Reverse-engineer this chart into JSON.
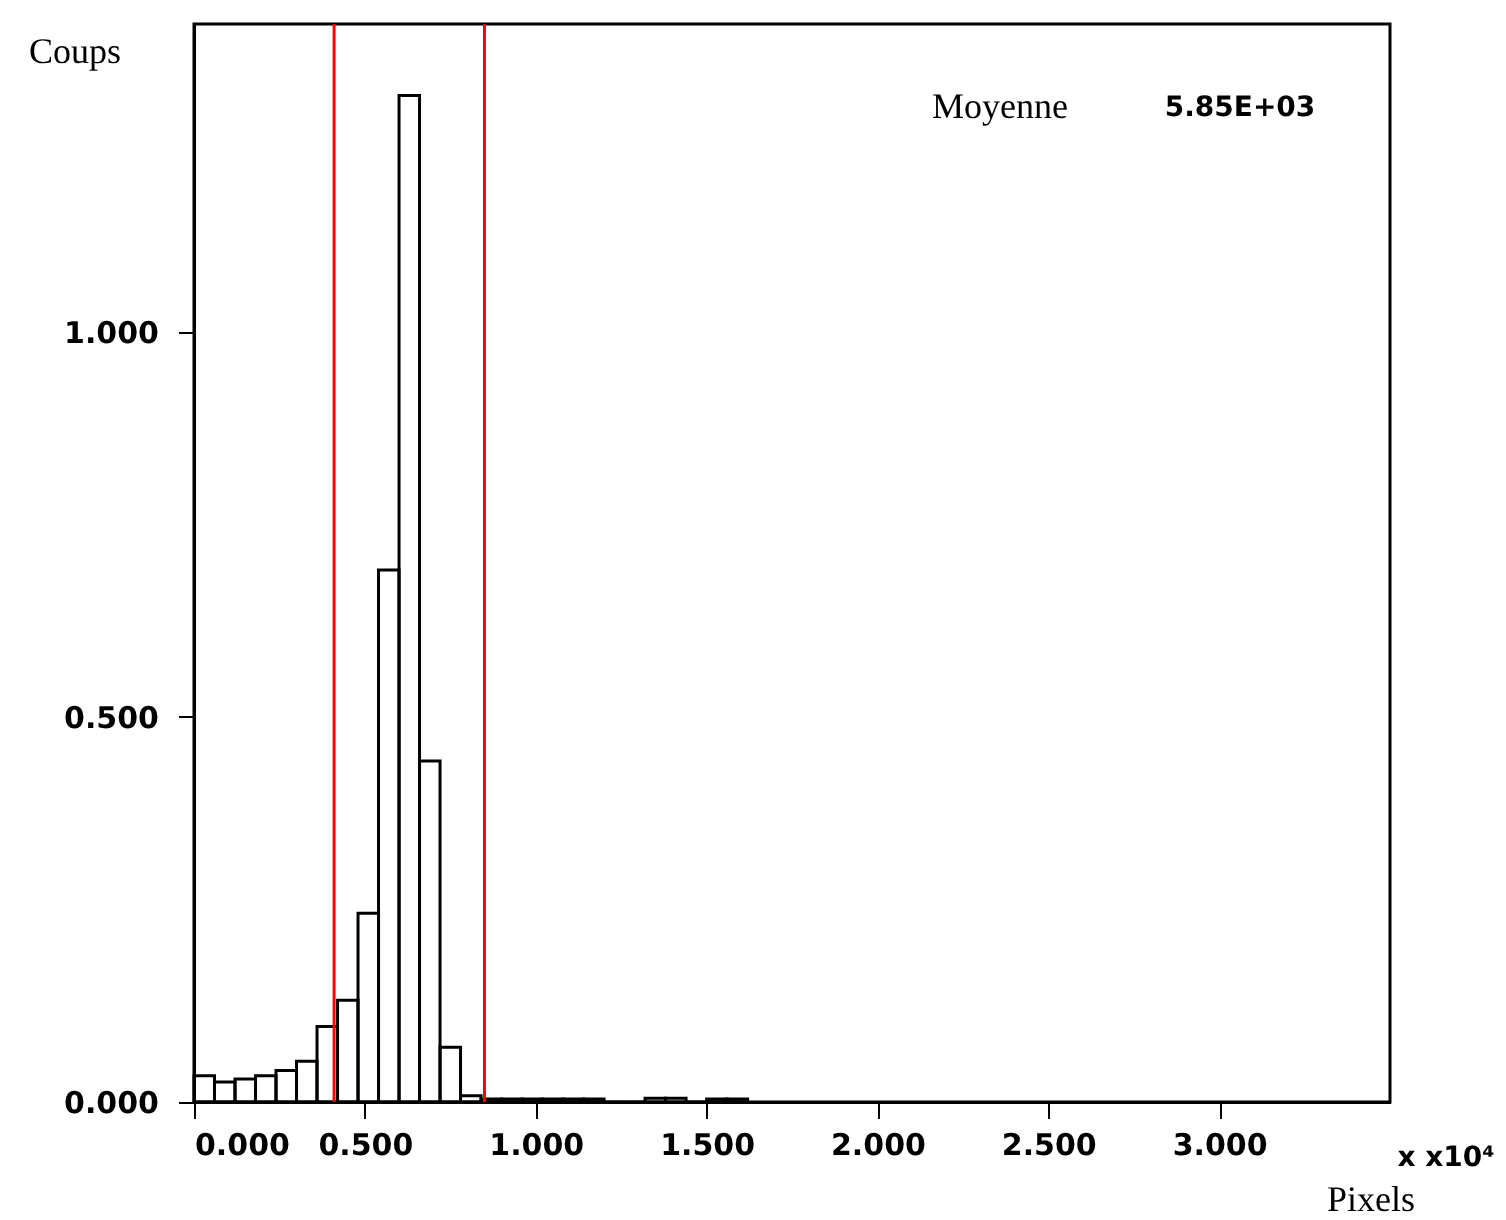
{
  "chart_data": {
    "type": "histogram",
    "xlabel": "Pixels",
    "ylabel": "Coups",
    "annotations": [
      "Moyenne",
      "5.85E+03",
      "x x10⁴"
    ],
    "bins": [
      0,
      0.06,
      0.12,
      0.18,
      0.24,
      0.3,
      0.36,
      0.42,
      0.48,
      0.54,
      0.6,
      0.66,
      0.72,
      0.78,
      0.84,
      0.9,
      0.96,
      1.02,
      1.08,
      1.14,
      1.2,
      1.26,
      1.32,
      1.38,
      1.44,
      1.5,
      1.56,
      1.62
    ],
    "values": [
      0.034,
      0.026,
      0.03,
      0.034,
      0.041,
      0.053,
      0.098,
      0.132,
      0.245,
      0.691,
      1.307,
      0.443,
      0.071,
      0.008,
      0.004,
      0.004,
      0.004,
      0.004,
      0.004,
      0.004,
      0,
      0,
      0.005,
      0.005,
      0,
      0.004,
      0.004
    ],
    "color": "#000000",
    "xlim": [
      0,
      3.5
    ],
    "ylim": [
      0,
      1.4
    ],
    "xticks": [
      {
        "value": 0,
        "label": "0.000"
      },
      {
        "value": 0.5,
        "label": "0.500"
      },
      {
        "value": 1,
        "label": "1.000"
      },
      {
        "value": 1.5,
        "label": "1.500"
      },
      {
        "value": 2,
        "label": "2.000"
      },
      {
        "value": 2.5,
        "label": "2.500"
      },
      {
        "value": 3,
        "label": "3.000"
      }
    ],
    "yticks": [
      {
        "value": 0,
        "label": "0.000"
      },
      {
        "value": 0.5,
        "label": "0.500"
      },
      {
        "value": 1,
        "label": "1.000"
      }
    ],
    "ref_lines": [
      {
        "axis": "x",
        "value": 0.41,
        "color": "#ff0000"
      },
      {
        "axis": "x",
        "value": 0.85,
        "color": "#ff0000"
      }
    ],
    "grid": false
  }
}
